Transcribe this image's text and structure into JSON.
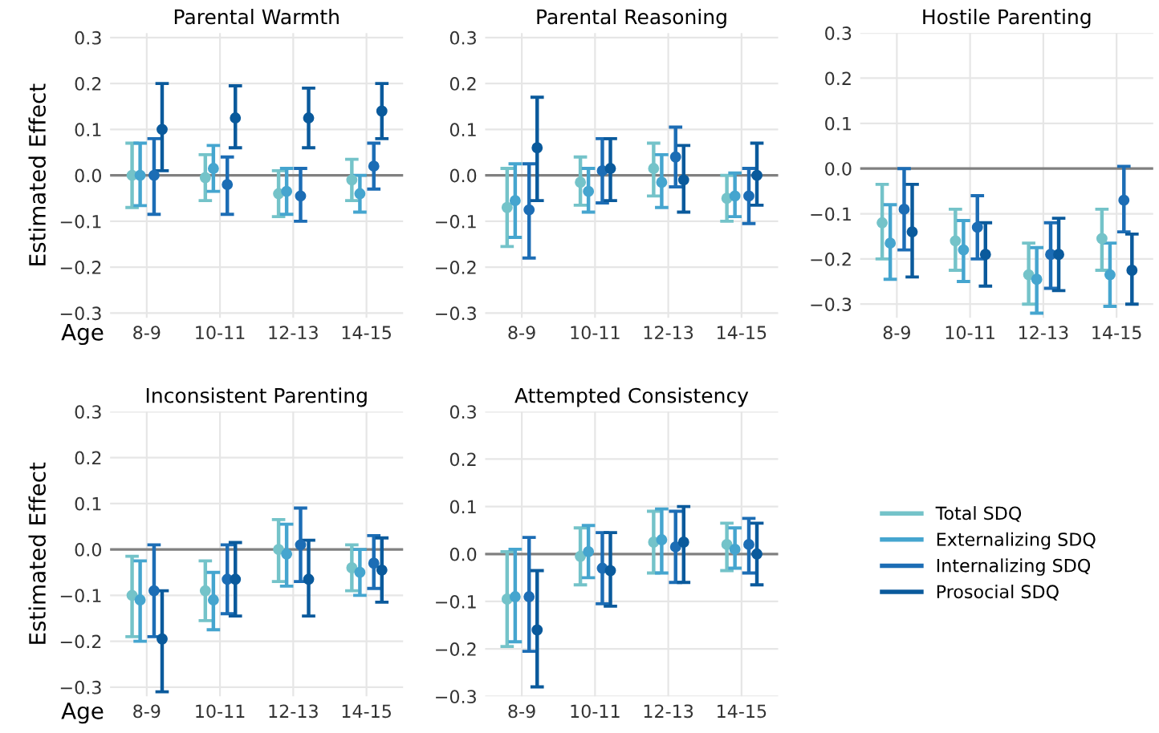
{
  "chart_data": [
    {
      "type": "scatter",
      "title": "Parental Warmth",
      "xlabel": "Age",
      "ylabel": "Estimated Effect",
      "categories": [
        "8-9",
        "10-11",
        "12-13",
        "14-15"
      ],
      "ylim": [
        -0.31,
        0.31
      ],
      "yticks": [
        {
          "value": -0.3,
          "label": "−0.3"
        },
        {
          "value": -0.2,
          "label": "−0.2"
        },
        {
          "value": -0.1,
          "label": "−0.1"
        },
        {
          "value": 0,
          "label": "0.0"
        },
        0.1,
        0.2,
        0.3
      ],
      "grid": true,
      "marker": "circle",
      "ref_lines": [
        {
          "axis": "y",
          "value": 0,
          "color": "#808080"
        }
      ],
      "series": [
        {
          "color": "#74c3c9",
          "values": [
            0.0,
            -0.005,
            -0.04,
            -0.01
          ],
          "errors": [
            [
              -0.07,
              0.07
            ],
            [
              -0.055,
              0.045
            ],
            [
              -0.09,
              0.01
            ],
            [
              -0.055,
              0.035
            ]
          ]
        },
        {
          "color": "#45a5cf",
          "values": [
            0.0,
            0.015,
            -0.035,
            -0.04
          ],
          "errors": [
            [
              -0.066,
              0.07
            ],
            [
              -0.035,
              0.065
            ],
            [
              -0.085,
              0.015
            ],
            [
              -0.08,
              0.0
            ]
          ]
        },
        {
          "color": "#1c6db5",
          "values": [
            0.0,
            -0.02,
            -0.045,
            0.02
          ],
          "errors": [
            [
              -0.085,
              0.08
            ],
            [
              -0.085,
              0.04
            ],
            [
              -0.1,
              0.015
            ],
            [
              -0.03,
              0.07
            ]
          ]
        },
        {
          "color": "#0a5a9c",
          "values": [
            0.1,
            0.125,
            0.125,
            0.14
          ],
          "errors": [
            [
              0.01,
              0.2
            ],
            [
              0.06,
              0.195
            ],
            [
              0.06,
              0.19
            ],
            [
              0.08,
              0.2
            ]
          ]
        }
      ]
    },
    {
      "type": "scatter",
      "title": "Parental Reasoning",
      "categories": [
        "8-9",
        "10-11",
        "12-13",
        "14-15"
      ],
      "ylim": [
        -0.31,
        0.31
      ],
      "yticks": [
        {
          "value": -0.3,
          "label": "−0.3"
        },
        {
          "value": -0.2,
          "label": "−0.2"
        },
        {
          "value": -0.1,
          "label": "−0.1"
        },
        {
          "value": 0,
          "label": "0.0"
        },
        0.1,
        0.2,
        0.3
      ],
      "grid": true,
      "marker": "circle",
      "ref_lines": [
        {
          "axis": "y",
          "value": 0,
          "color": "#808080"
        }
      ],
      "series": [
        {
          "color": "#74c3c9",
          "values": [
            -0.07,
            -0.015,
            0.015,
            -0.05
          ],
          "errors": [
            [
              -0.155,
              0.015
            ],
            [
              -0.065,
              0.04
            ],
            [
              -0.045,
              0.07
            ],
            [
              -0.1,
              0.0
            ]
          ]
        },
        {
          "color": "#45a5cf",
          "values": [
            -0.055,
            -0.035,
            -0.015,
            -0.045
          ],
          "errors": [
            [
              -0.135,
              0.025
            ],
            [
              -0.08,
              0.015
            ],
            [
              -0.07,
              0.045
            ],
            [
              -0.09,
              0.005
            ]
          ]
        },
        {
          "color": "#1c6db5",
          "values": [
            -0.075,
            0.01,
            0.04,
            -0.045
          ],
          "errors": [
            [
              -0.18,
              0.025
            ],
            [
              -0.06,
              0.08
            ],
            [
              -0.025,
              0.105
            ],
            [
              -0.105,
              0.015
            ]
          ]
        },
        {
          "color": "#0a5a9c",
          "values": [
            0.06,
            0.015,
            -0.01,
            0.0
          ],
          "errors": [
            [
              -0.055,
              0.17
            ],
            [
              -0.055,
              0.08
            ],
            [
              -0.08,
              0.065
            ],
            [
              -0.065,
              0.07
            ]
          ]
        }
      ]
    },
    {
      "type": "scatter",
      "title": "Hostile Parenting",
      "categories": [
        "8-9",
        "10-11",
        "12-13",
        "14-15"
      ],
      "ylim": [
        -0.33,
        0.3
      ],
      "yticks": [
        {
          "value": -0.3,
          "label": "−0.3"
        },
        {
          "value": -0.2,
          "label": "−0.2"
        },
        {
          "value": -0.1,
          "label": "−0.1"
        },
        {
          "value": 0,
          "label": "0.0"
        },
        0.1,
        0.2,
        0.3
      ],
      "grid": true,
      "marker": "circle",
      "ref_lines": [
        {
          "axis": "y",
          "value": 0,
          "color": "#808080"
        }
      ],
      "series": [
        {
          "color": "#74c3c9",
          "values": [
            -0.12,
            -0.16,
            -0.235,
            -0.155
          ],
          "errors": [
            [
              -0.2,
              -0.035
            ],
            [
              -0.225,
              -0.09
            ],
            [
              -0.3,
              -0.165
            ],
            [
              -0.225,
              -0.09
            ]
          ]
        },
        {
          "color": "#45a5cf",
          "values": [
            -0.165,
            -0.18,
            -0.245,
            -0.235
          ],
          "errors": [
            [
              -0.245,
              -0.08
            ],
            [
              -0.25,
              -0.115
            ],
            [
              -0.32,
              -0.175
            ],
            [
              -0.305,
              -0.165
            ]
          ]
        },
        {
          "color": "#1c6db5",
          "values": [
            -0.09,
            -0.13,
            -0.19,
            -0.07
          ],
          "errors": [
            [
              -0.18,
              0.0
            ],
            [
              -0.2,
              -0.06
            ],
            [
              -0.265,
              -0.12
            ],
            [
              -0.14,
              0.005
            ]
          ]
        },
        {
          "color": "#0a5a9c",
          "values": [
            -0.14,
            -0.19,
            -0.19,
            -0.225
          ],
          "errors": [
            [
              -0.24,
              -0.035
            ],
            [
              -0.26,
              -0.12
            ],
            [
              -0.27,
              -0.11
            ],
            [
              -0.3,
              -0.145
            ]
          ]
        }
      ]
    },
    {
      "type": "scatter",
      "title": "Inconsistent Parenting",
      "xlabel": "Age",
      "ylabel": "Estimated Effect",
      "categories": [
        "8-9",
        "10-11",
        "12-13",
        "14-15"
      ],
      "ylim": [
        -0.32,
        0.3
      ],
      "yticks": [
        {
          "value": -0.3,
          "label": "−0.3"
        },
        {
          "value": -0.2,
          "label": "−0.2"
        },
        {
          "value": -0.1,
          "label": "−0.1"
        },
        {
          "value": 0,
          "label": "0.0"
        },
        0.1,
        0.2,
        0.3
      ],
      "grid": true,
      "marker": "circle",
      "ref_lines": [
        {
          "axis": "y",
          "value": 0,
          "color": "#808080"
        }
      ],
      "series": [
        {
          "color": "#74c3c9",
          "values": [
            -0.1,
            -0.09,
            0.0,
            -0.04
          ],
          "errors": [
            [
              -0.19,
              -0.015
            ],
            [
              -0.155,
              -0.025
            ],
            [
              -0.07,
              0.065
            ],
            [
              -0.09,
              0.01
            ]
          ]
        },
        {
          "color": "#45a5cf",
          "values": [
            -0.11,
            -0.11,
            -0.01,
            -0.05
          ],
          "errors": [
            [
              -0.2,
              -0.025
            ],
            [
              -0.175,
              -0.05
            ],
            [
              -0.08,
              0.055
            ],
            [
              -0.1,
              0.0
            ]
          ]
        },
        {
          "color": "#1c6db5",
          "values": [
            -0.09,
            -0.065,
            0.01,
            -0.03
          ],
          "errors": [
            [
              -0.19,
              0.01
            ],
            [
              -0.14,
              0.01
            ],
            [
              -0.07,
              0.09
            ],
            [
              -0.085,
              0.03
            ]
          ]
        },
        {
          "color": "#0a5a9c",
          "values": [
            -0.195,
            -0.065,
            -0.065,
            -0.045
          ],
          "errors": [
            [
              -0.31,
              -0.09
            ],
            [
              -0.145,
              0.015
            ],
            [
              -0.145,
              0.02
            ],
            [
              -0.115,
              0.025
            ]
          ]
        }
      ]
    },
    {
      "type": "scatter",
      "title": "Attempted Consistency",
      "categories": [
        "8-9",
        "10-11",
        "12-13",
        "14-15"
      ],
      "ylim": [
        -0.3,
        0.3
      ],
      "yticks": [
        {
          "value": -0.3,
          "label": "−0.3"
        },
        {
          "value": -0.2,
          "label": "−0.2"
        },
        {
          "value": -0.1,
          "label": "−0.1"
        },
        {
          "value": 0,
          "label": "0.0"
        },
        0.1,
        0.2,
        0.3
      ],
      "grid": true,
      "marker": "circle",
      "legend": "right",
      "ref_lines": [
        {
          "axis": "y",
          "value": 0,
          "color": "#808080"
        }
      ],
      "series": [
        {
          "name": "Total SDQ",
          "color": "#74c3c9",
          "values": [
            -0.095,
            -0.005,
            0.025,
            0.02
          ],
          "errors": [
            [
              -0.195,
              0.005
            ],
            [
              -0.065,
              0.055
            ],
            [
              -0.04,
              0.09
            ],
            [
              -0.035,
              0.065
            ]
          ]
        },
        {
          "name": "Externalizing SDQ",
          "color": "#45a5cf",
          "values": [
            -0.09,
            0.005,
            0.03,
            0.01
          ],
          "errors": [
            [
              -0.185,
              0.01
            ],
            [
              -0.05,
              0.06
            ],
            [
              -0.04,
              0.095
            ],
            [
              -0.03,
              0.055
            ]
          ]
        },
        {
          "name": "Internalizing SDQ",
          "color": "#1c6db5",
          "values": [
            -0.09,
            -0.03,
            0.015,
            0.02
          ],
          "errors": [
            [
              -0.205,
              0.035
            ],
            [
              -0.105,
              0.045
            ],
            [
              -0.06,
              0.09
            ],
            [
              -0.04,
              0.075
            ]
          ]
        },
        {
          "name": "Prosocial SDQ",
          "color": "#0a5a9c",
          "values": [
            -0.16,
            -0.035,
            0.025,
            0.0
          ],
          "errors": [
            [
              -0.28,
              -0.035
            ],
            [
              -0.11,
              0.045
            ],
            [
              -0.06,
              0.1
            ],
            [
              -0.065,
              0.065
            ]
          ]
        }
      ]
    }
  ]
}
